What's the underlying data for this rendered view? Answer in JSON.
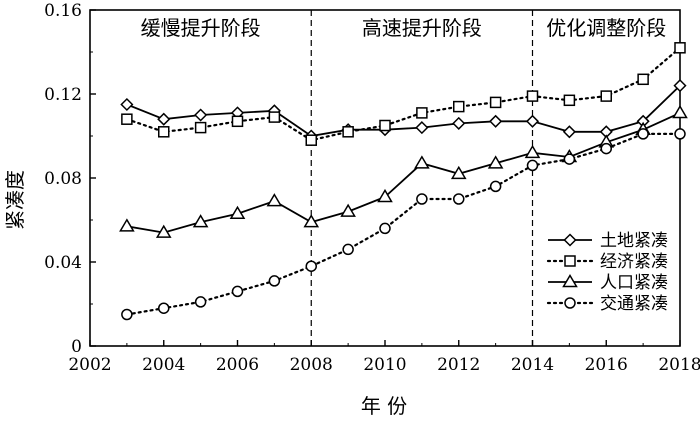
{
  "chart_data": {
    "type": "line",
    "xlabel": "年 份",
    "ylabel": "紧凑度",
    "xlim": [
      2002,
      2018
    ],
    "ylim": [
      0,
      0.16
    ],
    "x_ticks": [
      "2002",
      "2004",
      "2006",
      "2008",
      "2010",
      "2012",
      "2014",
      "2016",
      "2018"
    ],
    "y_ticks": [
      "0",
      "0.04",
      "0.08",
      "0.12",
      "0.16"
    ],
    "grid": false,
    "legend_position": "right",
    "phases": [
      {
        "label": "缓慢提升阶段",
        "start": 2002,
        "end": 2008
      },
      {
        "label": "高速提升阶段",
        "start": 2008,
        "end": 2014
      },
      {
        "label": "优化调整阶段",
        "start": 2014,
        "end": 2018
      }
    ],
    "phase_dividers": [
      2008,
      2014
    ],
    "x": [
      2003,
      2004,
      2005,
      2006,
      2007,
      2008,
      2009,
      2010,
      2011,
      2012,
      2013,
      2014,
      2015,
      2016,
      2017,
      2018
    ],
    "series": [
      {
        "name": "土地紧凑",
        "marker": "diamond",
        "line": "solid",
        "values": [
          0.115,
          0.108,
          0.11,
          0.111,
          0.112,
          0.1,
          0.103,
          0.103,
          0.104,
          0.106,
          0.107,
          0.107,
          0.102,
          0.102,
          0.107,
          0.124
        ]
      },
      {
        "name": "经济紧凑",
        "marker": "square",
        "line": "dotted",
        "values": [
          0.108,
          0.102,
          0.104,
          0.107,
          0.109,
          0.098,
          0.102,
          0.105,
          0.111,
          0.114,
          0.116,
          0.119,
          0.117,
          0.119,
          0.127,
          0.142
        ]
      },
      {
        "name": "人口紧凑",
        "marker": "triangle",
        "line": "solid",
        "values": [
          0.057,
          0.054,
          0.059,
          0.063,
          0.069,
          0.059,
          0.064,
          0.071,
          0.087,
          0.082,
          0.087,
          0.092,
          0.09,
          0.097,
          0.103,
          0.111
        ]
      },
      {
        "name": "交通紧凑",
        "marker": "circle",
        "line": "dotted",
        "values": [
          0.015,
          0.018,
          0.021,
          0.026,
          0.031,
          0.038,
          0.046,
          0.056,
          0.07,
          0.07,
          0.076,
          0.086,
          0.089,
          0.094,
          0.101,
          0.101
        ]
      }
    ]
  }
}
